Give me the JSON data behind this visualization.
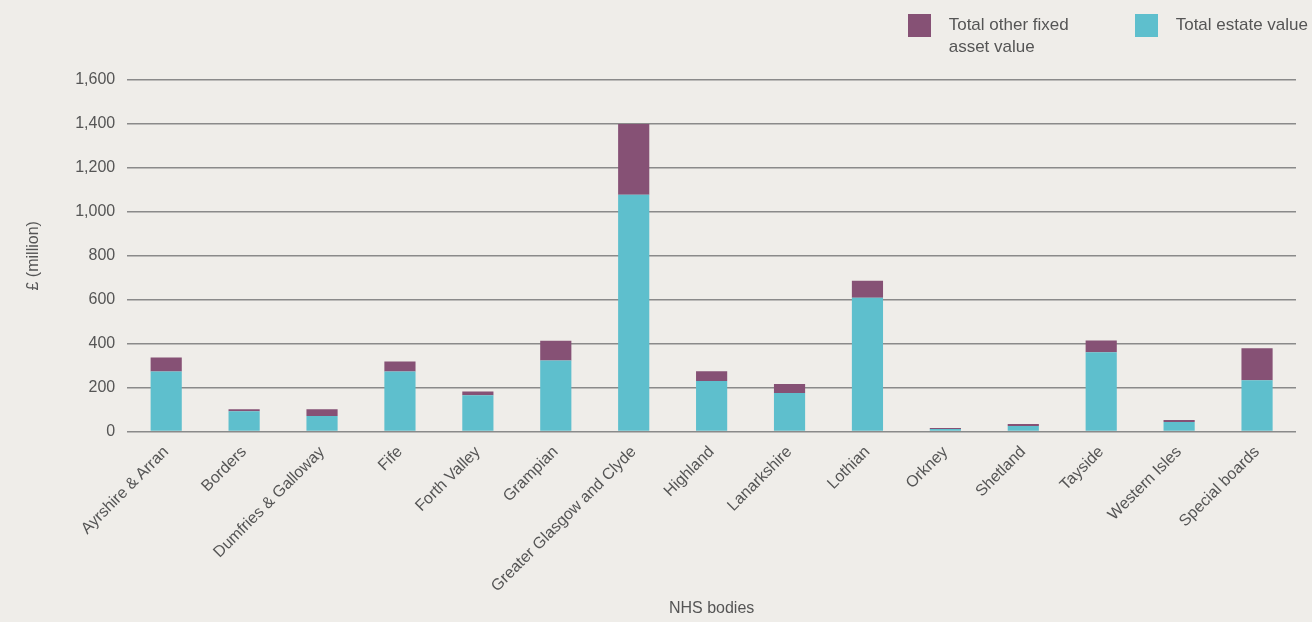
{
  "chart_data": {
    "type": "bar",
    "stacked": true,
    "xlabel": "NHS bodies",
    "ylabel": "£ (million)",
    "categories": [
      "Ayrshire & Arran",
      "Borders",
      "Dumfries & Galloway",
      "Fife",
      "Forth Valley",
      "Grampian",
      "Greater Glasgow and Clyde",
      "Highland",
      "Lanarkshire",
      "Lothian",
      "Orkney",
      "Shetland",
      "Tayside",
      "Western Isles",
      "Special boards"
    ],
    "series": [
      {
        "name": "Total estate value",
        "color": "#5ebfcd",
        "values": [
          274,
          93,
          71,
          274,
          165,
          324,
          1078,
          230,
          176,
          609,
          12,
          26,
          361,
          44,
          234
        ]
      },
      {
        "name": "Total other fixed asset value",
        "color": "#865175",
        "values": [
          63,
          9,
          31,
          45,
          18,
          90,
          322,
          45,
          41,
          77,
          5,
          9,
          54,
          9,
          145
        ]
      }
    ],
    "ylim": [
      0,
      1600
    ],
    "yticks": [
      {
        "value": 0,
        "label": "0"
      },
      {
        "value": 200,
        "label": "200"
      },
      {
        "value": 400,
        "label": "400"
      },
      {
        "value": 600,
        "label": "600"
      },
      {
        "value": 800,
        "label": "800"
      },
      {
        "value": 1000,
        "label": "1,000"
      },
      {
        "value": 1200,
        "label": "1,200"
      },
      {
        "value": 1400,
        "label": "1,400"
      },
      {
        "value": 1600,
        "label": "1,600"
      }
    ],
    "grid": "y",
    "legend": "top right"
  }
}
